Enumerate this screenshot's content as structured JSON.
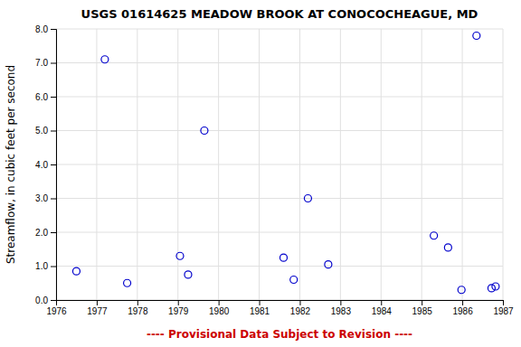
{
  "chart_data": {
    "type": "scatter",
    "title": "USGS 01614625 MEADOW BROOK AT CONOCOCHEAGUE, MD",
    "ylabel": "Streamflow, in cubic feet per second",
    "x": [
      1976.5,
      1977.2,
      1977.75,
      1979.05,
      1979.25,
      1979.65,
      1981.6,
      1981.85,
      1982.2,
      1982.7,
      1985.3,
      1985.65,
      1985.98,
      1986.35,
      1986.72,
      1986.82
    ],
    "values": [
      0.85,
      7.1,
      0.5,
      1.3,
      0.75,
      5.0,
      1.25,
      0.6,
      3.0,
      1.05,
      1.9,
      1.55,
      0.3,
      7.8,
      0.35,
      0.4
    ],
    "color": "#0000cc",
    "marker": "open-circle",
    "xlim": [
      1976,
      1987
    ],
    "ylim": [
      0.0,
      8.0
    ],
    "xticks": [
      1976,
      1977,
      1978,
      1979,
      1980,
      1981,
      1982,
      1983,
      1984,
      1985,
      1986,
      1987
    ],
    "yticks": [
      {
        "value": 0.0,
        "label": "0.0"
      },
      {
        "value": 1.0,
        "label": "1.0"
      },
      {
        "value": 2.0,
        "label": "2.0"
      },
      {
        "value": 3.0,
        "label": "3.0"
      },
      {
        "value": 4.0,
        "label": "4.0"
      },
      {
        "value": 5.0,
        "label": "5.0"
      },
      {
        "value": 6.0,
        "label": "6.0"
      },
      {
        "value": 7.0,
        "label": "7.0"
      },
      {
        "value": 8.0,
        "label": "8.0"
      }
    ],
    "grid": true,
    "annotations": [
      {
        "text": "---- Provisional Data Subject to Revision ----",
        "color": "#cc0000"
      }
    ]
  }
}
